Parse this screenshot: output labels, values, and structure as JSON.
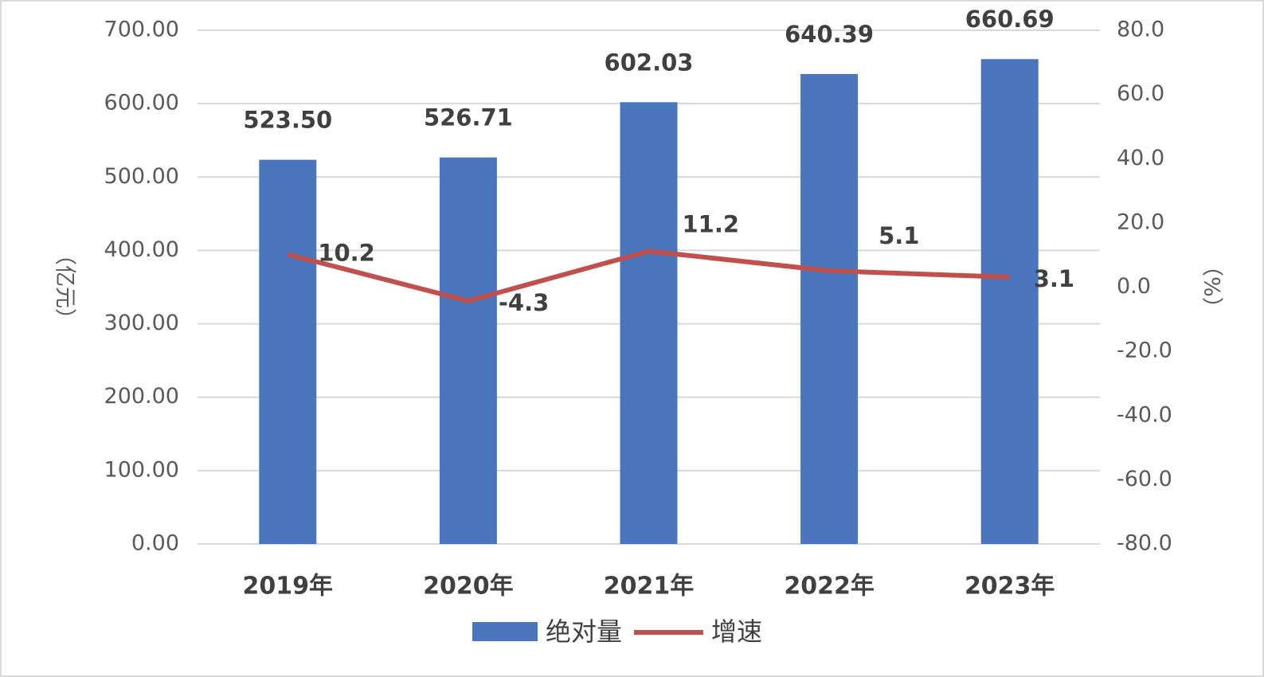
{
  "chart_data": {
    "type": "bar_line",
    "categories": [
      "2019年",
      "2020年",
      "2021年",
      "2022年",
      "2023年"
    ],
    "series": [
      {
        "name": "绝对量",
        "type": "bar",
        "color": "#4a76bd",
        "values": [
          523.5,
          526.71,
          602.03,
          640.39,
          660.69
        ],
        "value_labels": [
          "523.50",
          "526.71",
          "602.03",
          "640.39",
          "660.69"
        ]
      },
      {
        "name": "增速",
        "type": "line",
        "axis": "y2",
        "color": "#c0504d",
        "values": [
          10.2,
          -4.3,
          11.2,
          5.1,
          3.1
        ]
      }
    ],
    "ylabel": "（亿元）",
    "y2label": "（%）",
    "ylim": [
      0,
      700
    ],
    "yticks": [
      {
        "value": 0,
        "label": "0.00"
      },
      {
        "value": 100,
        "label": "100.00"
      },
      {
        "value": 200,
        "label": "200.00"
      },
      {
        "value": 300,
        "label": "300.00"
      },
      {
        "value": 400,
        "label": "400.00"
      },
      {
        "value": 500,
        "label": "500.00"
      },
      {
        "value": 600,
        "label": "600.00"
      },
      {
        "value": 700,
        "label": "700.00"
      }
    ],
    "y2lim": [
      -80,
      80
    ],
    "y2ticks": [
      {
        "value": -80,
        "label": "-80.0"
      },
      {
        "value": -60,
        "label": "-60.0"
      },
      {
        "value": -40,
        "label": "-40.0"
      },
      {
        "value": -20,
        "label": "-20.0"
      },
      {
        "value": 0,
        "label": "0.0"
      },
      {
        "value": 20,
        "label": "20.0"
      },
      {
        "value": 40,
        "label": "40.0"
      },
      {
        "value": 60,
        "label": "60.0"
      },
      {
        "value": 80,
        "label": "80.0"
      }
    ],
    "grid": true,
    "legend": "bottom"
  }
}
